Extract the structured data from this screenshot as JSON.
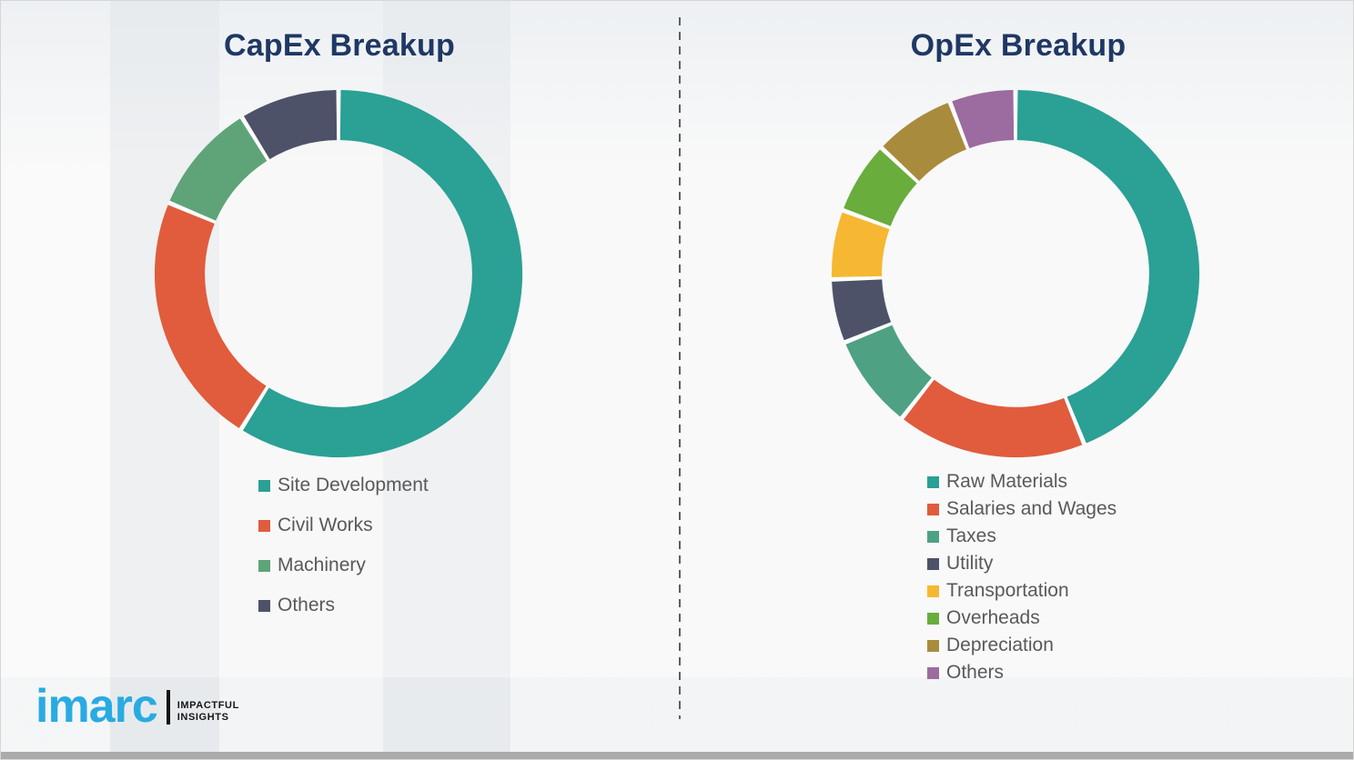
{
  "chart_data": [
    {
      "type": "donut",
      "title": "CapEx Breakup",
      "title_color": "#1f3864",
      "legend_position": "bottom-left",
      "gridlines": false,
      "segments": [
        {
          "label": "Site Development",
          "value": 58.9,
          "color": "#2ba094"
        },
        {
          "label": "Civil Works",
          "value": 22.4,
          "color": "#e05c3d"
        },
        {
          "label": "Machinery",
          "value": 9.9,
          "color": "#5fa478"
        },
        {
          "label": "Others",
          "value": 8.8,
          "color": "#4e5268"
        }
      ]
    },
    {
      "type": "donut",
      "title": "OpEx Breakup",
      "title_color": "#1f3864",
      "legend_position": "bottom-left",
      "gridlines": false,
      "segments": [
        {
          "label": "Raw Materials",
          "value": 43.9,
          "color": "#2ba094"
        },
        {
          "label": "Salaries and Wages",
          "value": 16.7,
          "color": "#e05c3d"
        },
        {
          "label": "Taxes",
          "value": 8.3,
          "color": "#4fa183"
        },
        {
          "label": "Utility",
          "value": 5.6,
          "color": "#4e5268"
        },
        {
          "label": "Transportation",
          "value": 6.1,
          "color": "#f6b832"
        },
        {
          "label": "Overheads",
          "value": 6.4,
          "color": "#69ad3c"
        },
        {
          "label": "Depreciation",
          "value": 7.2,
          "color": "#a98b3e"
        },
        {
          "label": "Others",
          "value": 5.8,
          "color": "#9c6ba0"
        }
      ]
    }
  ],
  "logo": {
    "brand": "imarc",
    "tagline_line1": "IMPACTFUL",
    "tagline_line2": "INSIGHTS",
    "brand_color": "#29abe2"
  }
}
